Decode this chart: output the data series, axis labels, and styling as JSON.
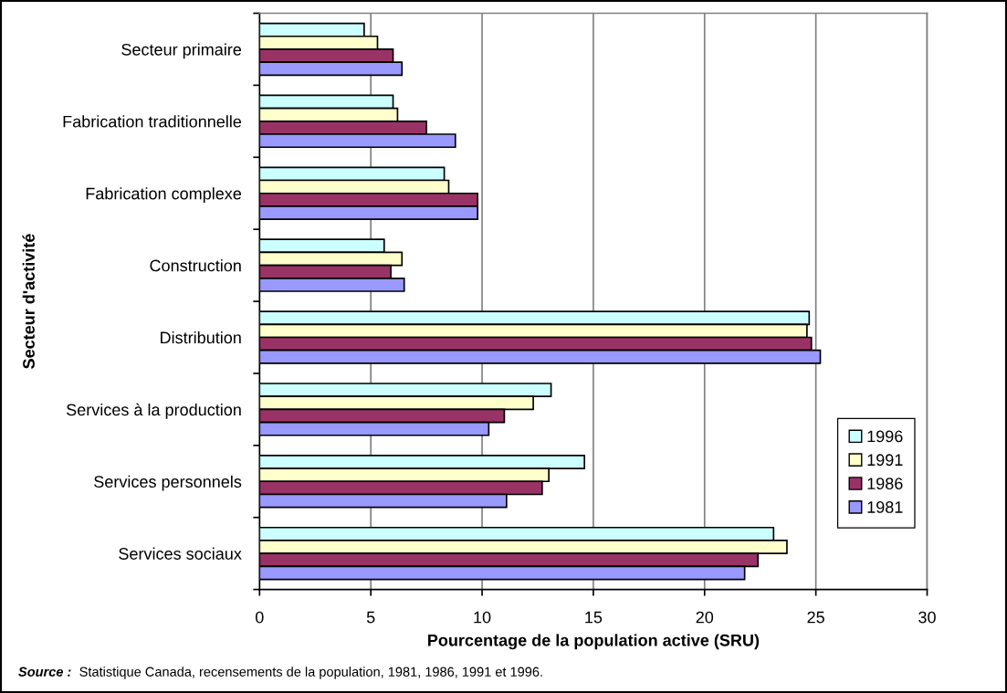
{
  "chart_data": {
    "type": "bar",
    "orientation": "horizontal",
    "xlabel": "Pourcentage de la population active (SRU)",
    "ylabel": "Secteur d'activité",
    "categories": [
      "Secteur primaire",
      "Fabrication traditionnelle",
      "Fabrication complexe",
      "Construction",
      "Distribution",
      "Services à la production",
      "Services personnels",
      "Services sociaux"
    ],
    "series": [
      {
        "name": "1996",
        "color": "#ccffff",
        "values": [
          4.7,
          6.0,
          8.3,
          5.6,
          24.7,
          13.1,
          14.6,
          23.1
        ]
      },
      {
        "name": "1991",
        "color": "#ffffcc",
        "values": [
          5.3,
          6.2,
          8.5,
          6.4,
          24.6,
          12.3,
          13.0,
          23.7
        ]
      },
      {
        "name": "1986",
        "color": "#993366",
        "values": [
          6.0,
          7.5,
          9.8,
          5.9,
          24.8,
          11.0,
          12.7,
          22.4
        ]
      },
      {
        "name": "1981",
        "color": "#9999ff",
        "values": [
          6.4,
          8.8,
          9.8,
          6.5,
          25.2,
          10.3,
          11.1,
          21.8
        ]
      }
    ],
    "xlim": [
      0,
      30
    ],
    "xticks": [
      0,
      5,
      10,
      15,
      20,
      25,
      30
    ],
    "grid": "x",
    "legend": "bottom right",
    "annotations": [
      "Source :",
      "Statistique Canada, recensements de la population, 1981, 1986, 1991 et 1996."
    ]
  }
}
